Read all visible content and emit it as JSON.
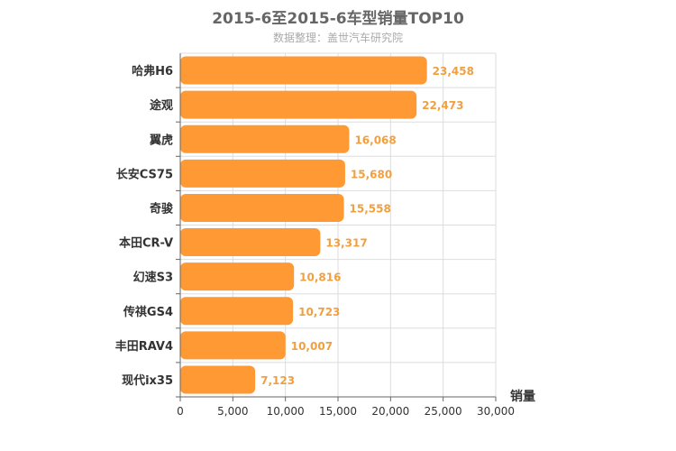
{
  "chart_data": {
    "type": "bar",
    "orientation": "horizontal",
    "title": "2015-6至2015-6车型销量TOP10",
    "subtitle": "数据整理：盖世汽车研究院",
    "xlabel": "销量",
    "ylabel": "",
    "categories": [
      "哈弗H6",
      "途观",
      "翼虎",
      "长安CS75",
      "奇骏",
      "本田CR-V",
      "幻速S3",
      "传祺GS4",
      "丰田RAV4",
      "现代ix35"
    ],
    "values": [
      23458,
      22473,
      16068,
      15680,
      15558,
      13317,
      10816,
      10723,
      10007,
      7123
    ],
    "value_labels": [
      "23,458",
      "22,473",
      "16,068",
      "15,680",
      "15,558",
      "13,317",
      "10,816",
      "10,723",
      "10,007",
      "7,123"
    ],
    "xlim": [
      0,
      30000
    ],
    "xticks": [
      0,
      5000,
      10000,
      15000,
      20000,
      25000,
      30000
    ],
    "xtick_labels": [
      "0",
      "5,000",
      "10,000",
      "15,000",
      "20,000",
      "25,000",
      "30,000"
    ],
    "grid": true,
    "legend": "none",
    "colors": {
      "bar": "#ff9933",
      "value_label": "#f0a040",
      "title": "#666666",
      "subtitle": "#aaaaaa",
      "grid": "#dddddd",
      "axis": "#666666"
    }
  }
}
